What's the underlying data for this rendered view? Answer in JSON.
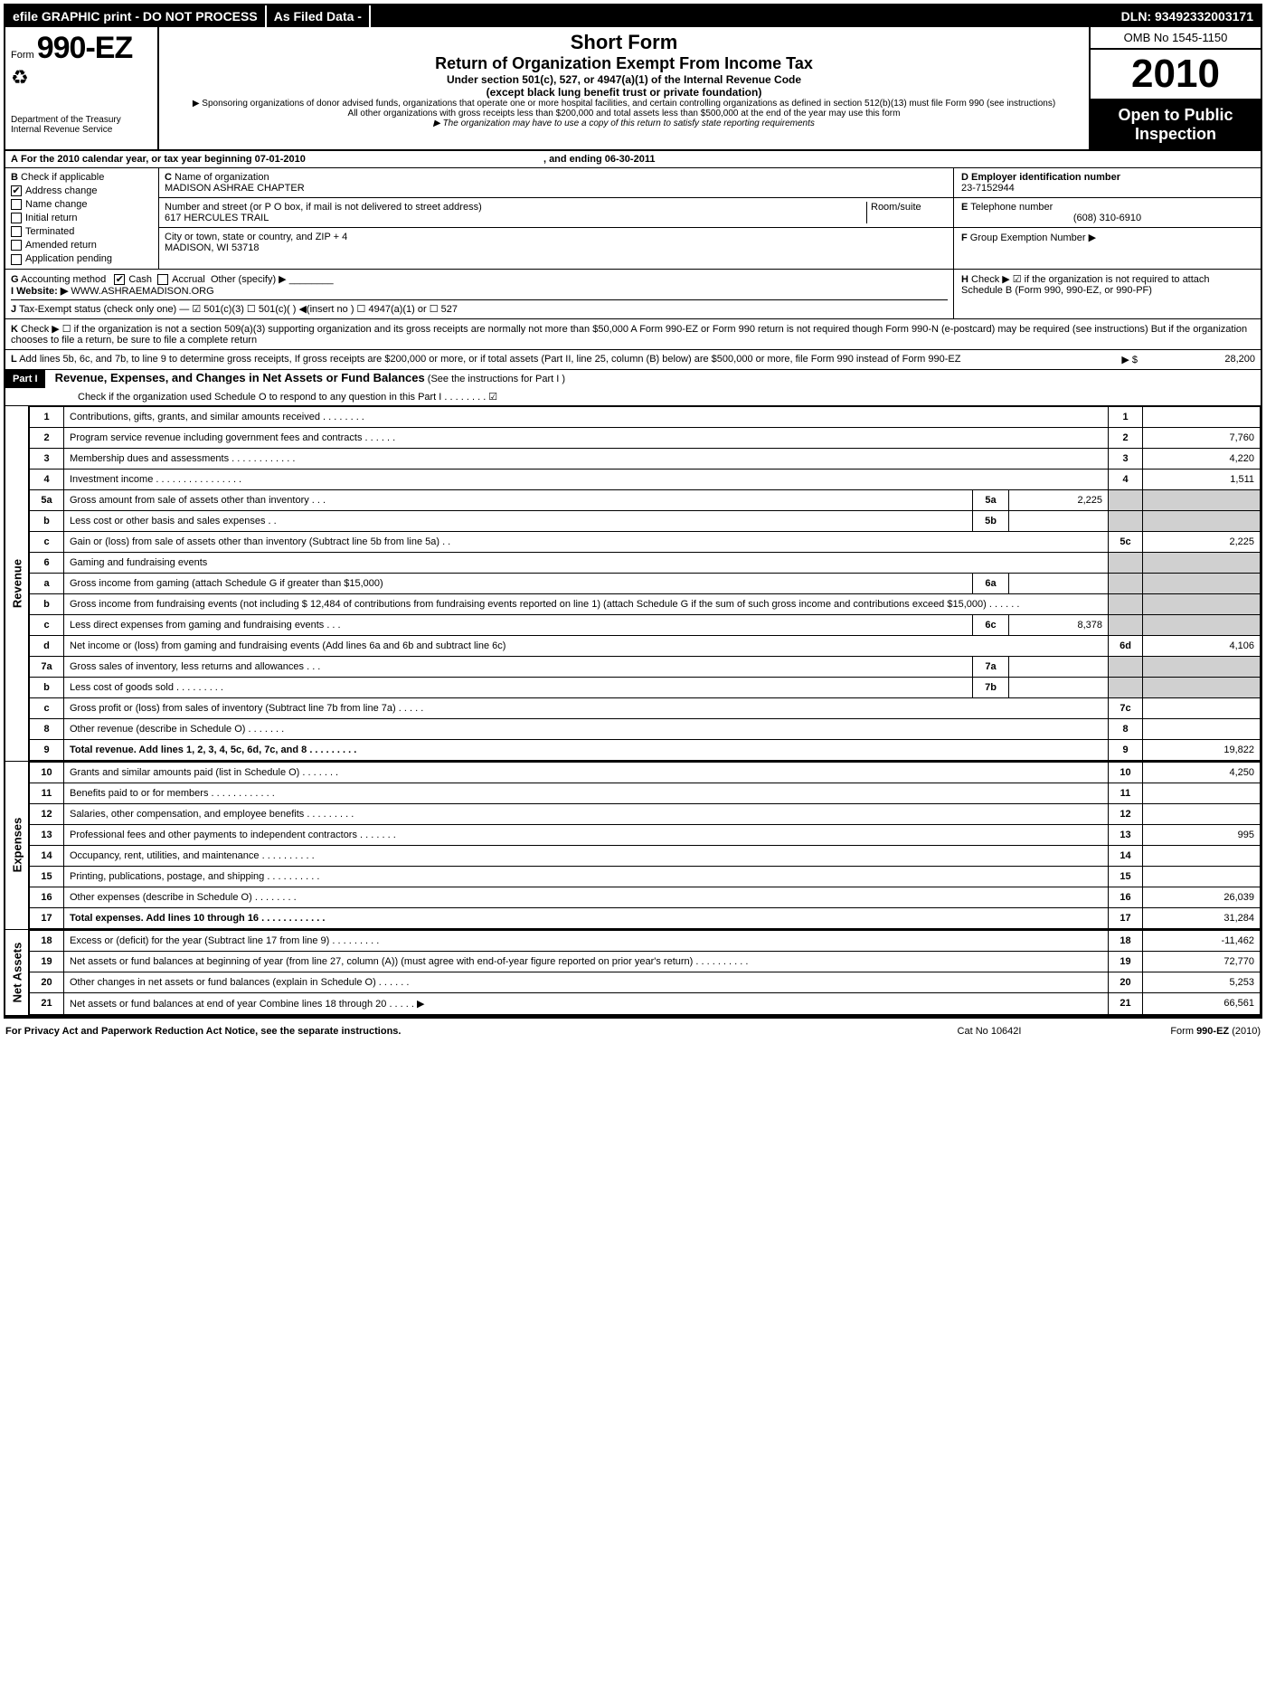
{
  "top": {
    "efile": "efile GRAPHIC print - DO NOT PROCESS",
    "asfiled": "As Filed Data -",
    "dln": "DLN: 93492332003171"
  },
  "header": {
    "form_prefix": "Form",
    "form_number": "990-EZ",
    "dept1": "Department of the Treasury",
    "dept2": "Internal Revenue Service",
    "short_form": "Short Form",
    "title": "Return of Organization Exempt From Income Tax",
    "subtitle1": "Under section 501(c), 527, or 4947(a)(1) of the Internal Revenue Code",
    "subtitle2": "(except black lung benefit trust or private foundation)",
    "fine1": "▶ Sponsoring organizations of donor advised funds, organizations that operate one or more hospital facilities, and certain controlling organizations as defined in section 512(b)(13) must file Form 990 (see instructions)",
    "fine2": "All other organizations with gross receipts less than $200,000 and total assets less than $500,000 at the end of the year may use this form",
    "fine3": "▶ The organization may have to use a copy of this return to satisfy state reporting requirements",
    "omb": "OMB No 1545-1150",
    "year": "2010",
    "open": "Open to Public Inspection"
  },
  "rowA": {
    "label": "A",
    "text": "For the 2010 calendar year, or tax year beginning 07-01-2010",
    "ending": ", and ending 06-30-2011"
  },
  "B": {
    "label": "B",
    "check": "Check if applicable",
    "items": [
      "Address change",
      "Name change",
      "Initial return",
      "Terminated",
      "Amended return",
      "Application pending"
    ],
    "checked": [
      true,
      false,
      false,
      false,
      false,
      false
    ]
  },
  "C": {
    "label": "C",
    "name_label": "Name of organization",
    "name": "MADISON ASHRAE CHAPTER",
    "street_label": "Number and street (or P O box, if mail is not delivered to street address)",
    "room_label": "Room/suite",
    "street": "617 HERCULES TRAIL",
    "city_label": "City or town, state or country, and ZIP + 4",
    "city": "MADISON, WI  53718"
  },
  "D": {
    "label": "D",
    "title": "Employer identification number",
    "value": "23-7152944"
  },
  "E": {
    "label": "E",
    "title": "Telephone number",
    "value": "(608) 310-6910"
  },
  "F": {
    "label": "F",
    "title": "Group Exemption Number ▶",
    "value": ""
  },
  "G": {
    "label": "G",
    "text": "Accounting method",
    "cash": "Cash",
    "accrual": "Accrual",
    "other": "Other (specify) ▶"
  },
  "I": {
    "label": "I",
    "text": "Website: ▶",
    "url": "WWW.ASHRAEMADISON.ORG"
  },
  "H": {
    "label": "H",
    "text": "Check ▶ ☑ if the organization is not required to attach Schedule B (Form 990, 990-EZ, or 990-PF)"
  },
  "J": {
    "label": "J",
    "text": "Tax-Exempt status (check only one) — ☑ 501(c)(3) ☐ 501(c)(  ) ◀(insert no ) ☐ 4947(a)(1) or ☐ 527"
  },
  "K": {
    "label": "K",
    "text": "Check ▶ ☐ if the organization is not a section 509(a)(3) supporting organization and its gross receipts are normally not more than $50,000  A Form 990-EZ or Form 990 return is not required though Form 990-N (e-postcard) may be required (see instructions)  But if the organization chooses to file a return, be sure to file a complete return"
  },
  "L": {
    "label": "L",
    "text": "Add lines 5b, 6c, and 7b, to line 9 to determine gross receipts, If gross receipts are $200,000 or more, or if total assets (Part II, line 25, column (B) below) are $500,000 or more, file Form 990 instead of Form 990-EZ",
    "arrow": "▶ $",
    "amount": "28,200"
  },
  "part1": {
    "label": "Part I",
    "title": "Revenue, Expenses, and Changes in Net Assets or Fund Balances",
    "hint": "(See the instructions for Part I )",
    "check": "Check if the organization used Schedule O to respond to any question in this Part I   .   .   .   .   .   .   .   .  ☑"
  },
  "sections": {
    "revenue": "Revenue",
    "expenses": "Expenses",
    "netassets": "Net Assets"
  },
  "lines": [
    {
      "n": "1",
      "desc": "Contributions, gifts, grants, and similar amounts received   .   .   .   .   .   .   .   .",
      "ln": "1",
      "amt": ""
    },
    {
      "n": "2",
      "desc": "Program service revenue including government fees and contracts   .   .   .   .   .   .",
      "ln": "2",
      "amt": "7,760"
    },
    {
      "n": "3",
      "desc": "Membership dues and assessments   .   .   .   .   .   .   .   .   .   .   .   .",
      "ln": "3",
      "amt": "4,220"
    },
    {
      "n": "4",
      "desc": "Investment income   .   .   .   .   .   .   .   .   .   .   .   .   .   .   .   .",
      "ln": "4",
      "amt": "1,511"
    },
    {
      "n": "5a",
      "desc": "Gross amount from sale of assets other than inventory   .   .   .",
      "sub": "5a",
      "subamt": "2,225",
      "shade": true
    },
    {
      "n": "b",
      "desc": "Less cost or other basis and sales expenses   .   .",
      "sub": "5b",
      "subamt": "",
      "shade": true
    },
    {
      "n": "c",
      "desc": "Gain or (loss) from sale of assets other than inventory (Subtract line 5b from line 5a)   .   .",
      "ln": "5c",
      "amt": "2,225"
    },
    {
      "n": "6",
      "desc": "Gaming and fundraising events",
      "shade": true,
      "noln": true
    },
    {
      "n": "a",
      "desc": "Gross income from gaming (attach Schedule G if greater than $15,000)",
      "sub": "6a",
      "subamt": "",
      "shade": true
    },
    {
      "n": "b",
      "desc": "Gross income from fundraising events (not including $ 12,484 of contributions from fundraising events reported on line 1) (attach Schedule G if the sum of such gross income and contributions exceed $15,000)   .   .   .   .   .   .",
      "shade": true,
      "noln": true
    },
    {
      "n": "c",
      "desc": "Less direct expenses from gaming and fundraising events   .   .   .",
      "sub": "6c",
      "subamt": "8,378",
      "shade": true
    },
    {
      "n": "d",
      "desc": "Net income or (loss) from gaming and fundraising events (Add lines 6a and 6b and subtract line 6c)",
      "ln": "6d",
      "amt": "4,106"
    },
    {
      "n": "7a",
      "desc": "Gross sales of inventory, less returns and allowances   .   .   .",
      "sub": "7a",
      "subamt": "",
      "shade": true
    },
    {
      "n": "b",
      "desc": "Less cost of goods sold   .   .   .   .   .   .   .   .   .",
      "sub": "7b",
      "subamt": "",
      "shade": true
    },
    {
      "n": "c",
      "desc": "Gross profit or (loss) from sales of inventory (Subtract line 7b from line 7a)   .   .   .   .   .",
      "ln": "7c",
      "amt": ""
    },
    {
      "n": "8",
      "desc": "Other revenue (describe in Schedule O)   .   .   .   .   .   .   .",
      "ln": "8",
      "amt": ""
    },
    {
      "n": "9",
      "desc": "Total revenue. Add lines 1, 2, 3, 4, 5c, 6d, 7c, and 8   .   .   .   .   .   .   .   .   .",
      "ln": "9",
      "amt": "19,822",
      "bold": true
    }
  ],
  "exp_lines": [
    {
      "n": "10",
      "desc": "Grants and similar amounts paid (list in Schedule O)   .   .   .   .   .   .   .",
      "ln": "10",
      "amt": "4,250"
    },
    {
      "n": "11",
      "desc": "Benefits paid to or for members   .   .   .   .   .   .   .   .   .   .   .   .",
      "ln": "11",
      "amt": ""
    },
    {
      "n": "12",
      "desc": "Salaries, other compensation, and employee benefits   .   .   .   .   .   .   .   .   .",
      "ln": "12",
      "amt": ""
    },
    {
      "n": "13",
      "desc": "Professional fees and other payments to independent contractors   .   .   .   .   .   .   .",
      "ln": "13",
      "amt": "995"
    },
    {
      "n": "14",
      "desc": "Occupancy, rent, utilities, and maintenance   .   .   .   .   .   .   .   .   .   .",
      "ln": "14",
      "amt": ""
    },
    {
      "n": "15",
      "desc": "Printing, publications, postage, and shipping   .   .   .   .   .   .   .   .   .   .",
      "ln": "15",
      "amt": ""
    },
    {
      "n": "16",
      "desc": "Other expenses (describe in Schedule O)   .   .   .   .   .   .   .   .",
      "ln": "16",
      "amt": "26,039"
    },
    {
      "n": "17",
      "desc": "Total expenses. Add lines 10 through 16   .   .   .   .   .   .   .   .   .   .   .   .",
      "ln": "17",
      "amt": "31,284",
      "bold": true
    }
  ],
  "na_lines": [
    {
      "n": "18",
      "desc": "Excess or (deficit) for the year (Subtract line 17 from line 9)   .   .   .   .   .   .   .   .   .",
      "ln": "18",
      "amt": "-11,462"
    },
    {
      "n": "19",
      "desc": "Net assets or fund balances at beginning of year (from line 27, column (A)) (must agree with end-of-year figure reported on prior year's return)   .   .   .   .   .   .   .   .   .   .",
      "ln": "19",
      "amt": "72,770"
    },
    {
      "n": "20",
      "desc": "Other changes in net assets or fund balances (explain in Schedule O)   .   .   .   .   .   .",
      "ln": "20",
      "amt": "5,253"
    },
    {
      "n": "21",
      "desc": "Net assets or fund balances at end of year  Combine lines 18 through 20   .   .   .   .   . ▶",
      "ln": "21",
      "amt": "66,561"
    }
  ],
  "footer": {
    "left": "For Privacy Act and Paperwork Reduction Act Notice, see the separate instructions.",
    "mid": "Cat No 10642I",
    "right": "Form 990-EZ (2010)"
  }
}
